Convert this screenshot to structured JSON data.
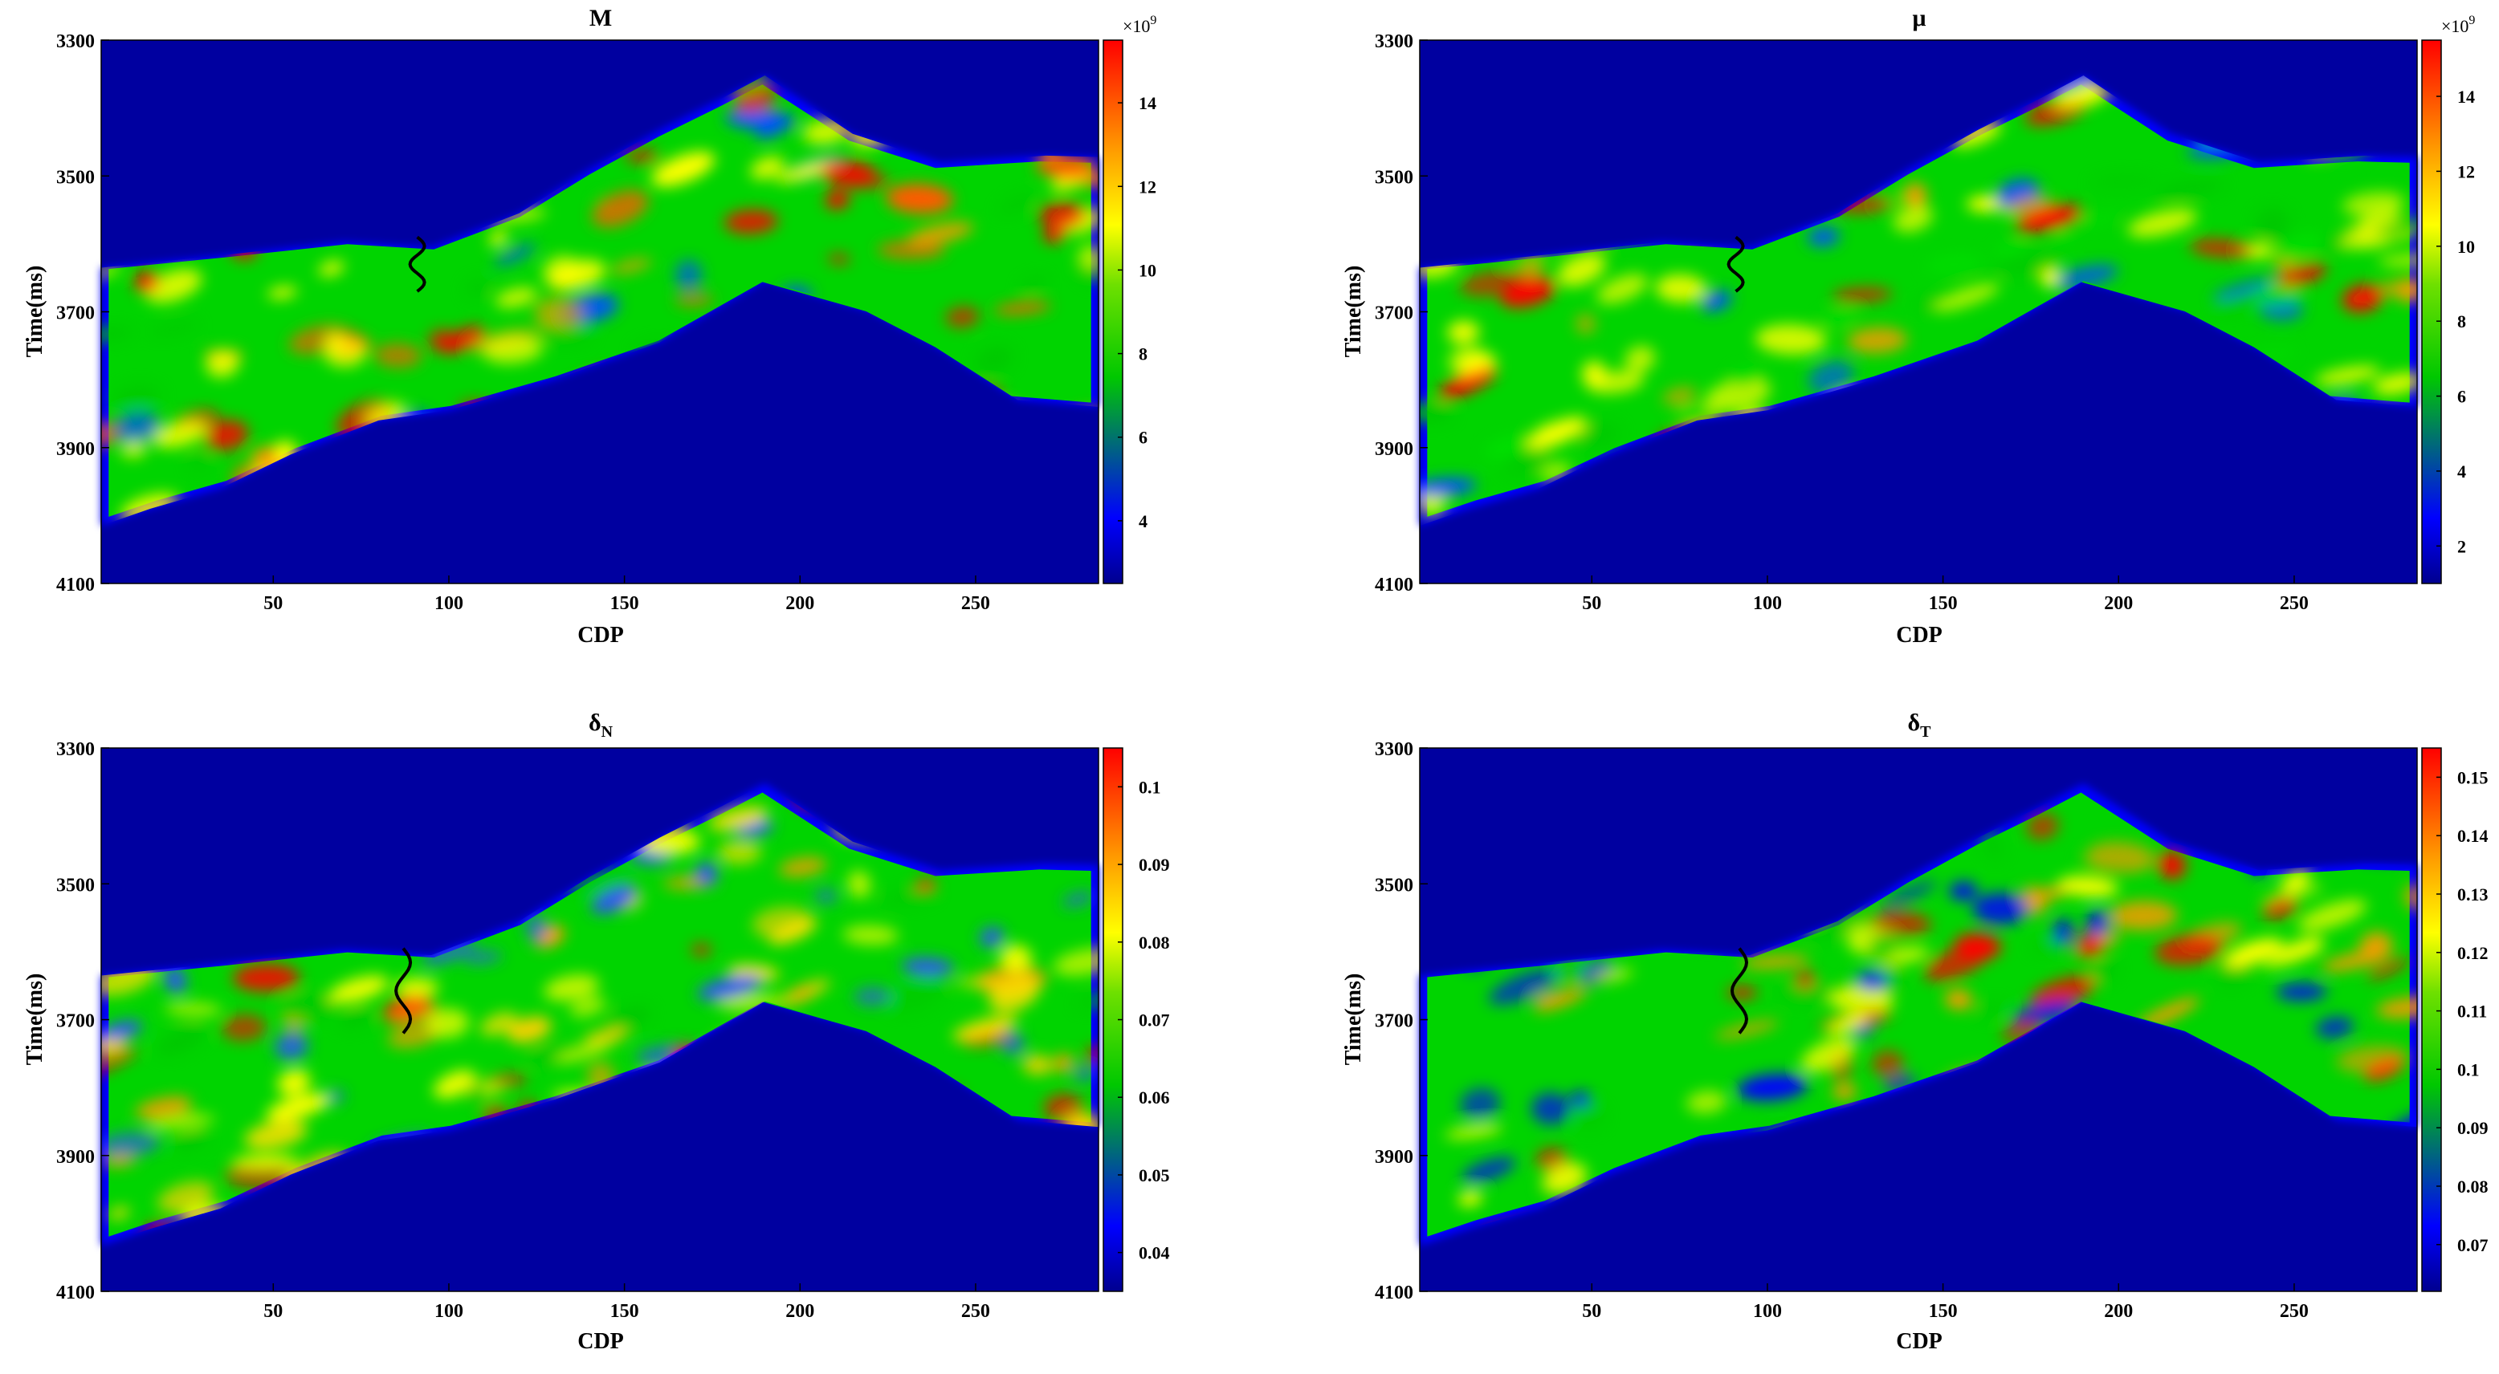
{
  "colors": {
    "background_blue": "#0000a0",
    "colormap": [
      "#00008f",
      "#0000ff",
      "#00c800",
      "#6ee000",
      "#ffff00",
      "#ff9a00",
      "#ff0000"
    ],
    "well_curve": "#000000"
  },
  "chart_data": [
    {
      "type": "heatmap",
      "title": "M",
      "xlabel": "CDP",
      "ylabel": "Time(ms)",
      "xticks": [
        "50",
        "100",
        "150",
        "200",
        "250"
      ],
      "yticks": [
        "3300",
        "3500",
        "3700",
        "3900",
        "4100"
      ],
      "xlim": [
        1,
        285
      ],
      "ylim": [
        3300,
        4100
      ],
      "colorbar": {
        "ticks": [
          "4",
          "6",
          "8",
          "10",
          "12",
          "14"
        ],
        "range": [
          2.5,
          15.5
        ],
        "exponent_label": "×10",
        "exponent_power": "9"
      },
      "well": {
        "cdp": 91,
        "time_range": [
          3590,
          3670
        ]
      }
    },
    {
      "type": "heatmap",
      "title": "μ",
      "xlabel": "CDP",
      "ylabel": "Time(ms)",
      "xticks": [
        "50",
        "100",
        "150",
        "200",
        "250"
      ],
      "yticks": [
        "3300",
        "3500",
        "3700",
        "3900",
        "4100"
      ],
      "xlim": [
        1,
        285
      ],
      "ylim": [
        3300,
        4100
      ],
      "colorbar": {
        "ticks": [
          "2",
          "4",
          "6",
          "8",
          "10",
          "12",
          "14"
        ],
        "range": [
          1,
          15.5
        ],
        "exponent_label": "×10",
        "exponent_power": "9"
      },
      "well": {
        "cdp": 91,
        "time_range": [
          3590,
          3670
        ]
      }
    },
    {
      "type": "heatmap",
      "title": "δ",
      "title_sub": "N",
      "xlabel": "CDP",
      "ylabel": "Time(ms)",
      "xticks": [
        "50",
        "100",
        "150",
        "200",
        "250"
      ],
      "yticks": [
        "3300",
        "3500",
        "3700",
        "3900",
        "4100"
      ],
      "xlim": [
        1,
        285
      ],
      "ylim": [
        3300,
        4100
      ],
      "colorbar": {
        "ticks": [
          "0.04",
          "0.05",
          "0.06",
          "0.07",
          "0.08",
          "0.09",
          "0.1"
        ],
        "range": [
          0.035,
          0.105
        ]
      },
      "well": {
        "cdp": 87,
        "time_range": [
          3595,
          3720
        ]
      }
    },
    {
      "type": "heatmap",
      "title": "δ",
      "title_sub": "T",
      "xlabel": "CDP",
      "ylabel": "Time(ms)",
      "xticks": [
        "50",
        "100",
        "150",
        "200",
        "250"
      ],
      "yticks": [
        "3300",
        "3500",
        "3700",
        "3900",
        "4100"
      ],
      "xlim": [
        1,
        285
      ],
      "ylim": [
        3300,
        4100
      ],
      "colorbar": {
        "ticks": [
          "0.07",
          "0.08",
          "0.09",
          "0.1",
          "0.11",
          "0.12",
          "0.13",
          "0.14",
          "0.15"
        ],
        "range": [
          0.062,
          0.155
        ]
      },
      "well": {
        "cdp": 92,
        "time_range": [
          3595,
          3720
        ]
      }
    }
  ]
}
